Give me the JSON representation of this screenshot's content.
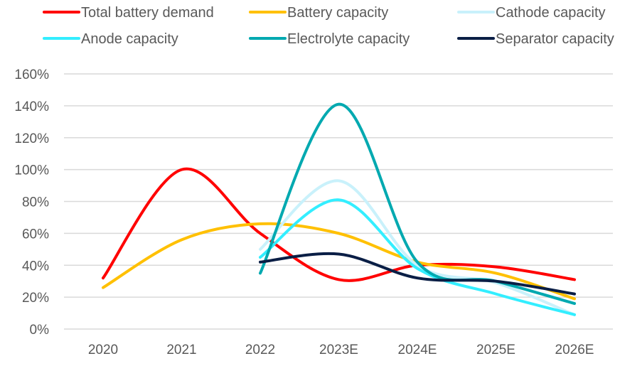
{
  "chart_data": {
    "type": "line",
    "title": "",
    "xlabel": "",
    "ylabel": "",
    "categories": [
      "2020",
      "2021",
      "2022",
      "2023E",
      "2024E",
      "2025E",
      "2026E"
    ],
    "ylim": [
      0,
      160
    ],
    "yticks": [
      0,
      20,
      40,
      60,
      80,
      100,
      120,
      140,
      160
    ],
    "ytick_labels": [
      "0%",
      "20%",
      "40%",
      "60%",
      "80%",
      "100%",
      "120%",
      "140%",
      "160%"
    ],
    "y_unit": "%",
    "grid": true,
    "smooth": true,
    "legend_position": "top",
    "series": [
      {
        "name": "Total battery demand",
        "color": "#ff0000",
        "values": [
          32,
          100,
          60,
          31,
          40,
          39,
          31
        ]
      },
      {
        "name": "Battery capacity",
        "color": "#ffc000",
        "values": [
          26,
          56,
          66,
          60,
          42,
          35,
          19
        ]
      },
      {
        "name": "Cathode capacity",
        "color": "#c9f1fb",
        "values": [
          null,
          null,
          50,
          93,
          40,
          29,
          9
        ]
      },
      {
        "name": "Anode capacity",
        "color": "#33eeff",
        "values": [
          null,
          null,
          45,
          81,
          38,
          22,
          9
        ]
      },
      {
        "name": "Electrolyte capacity",
        "color": "#00a9b0",
        "values": [
          null,
          null,
          35,
          141,
          42,
          30,
          16
        ]
      },
      {
        "name": "Separator capacity",
        "color": "#0a1e45",
        "values": [
          null,
          null,
          42,
          47,
          32,
          30,
          22
        ]
      }
    ]
  }
}
